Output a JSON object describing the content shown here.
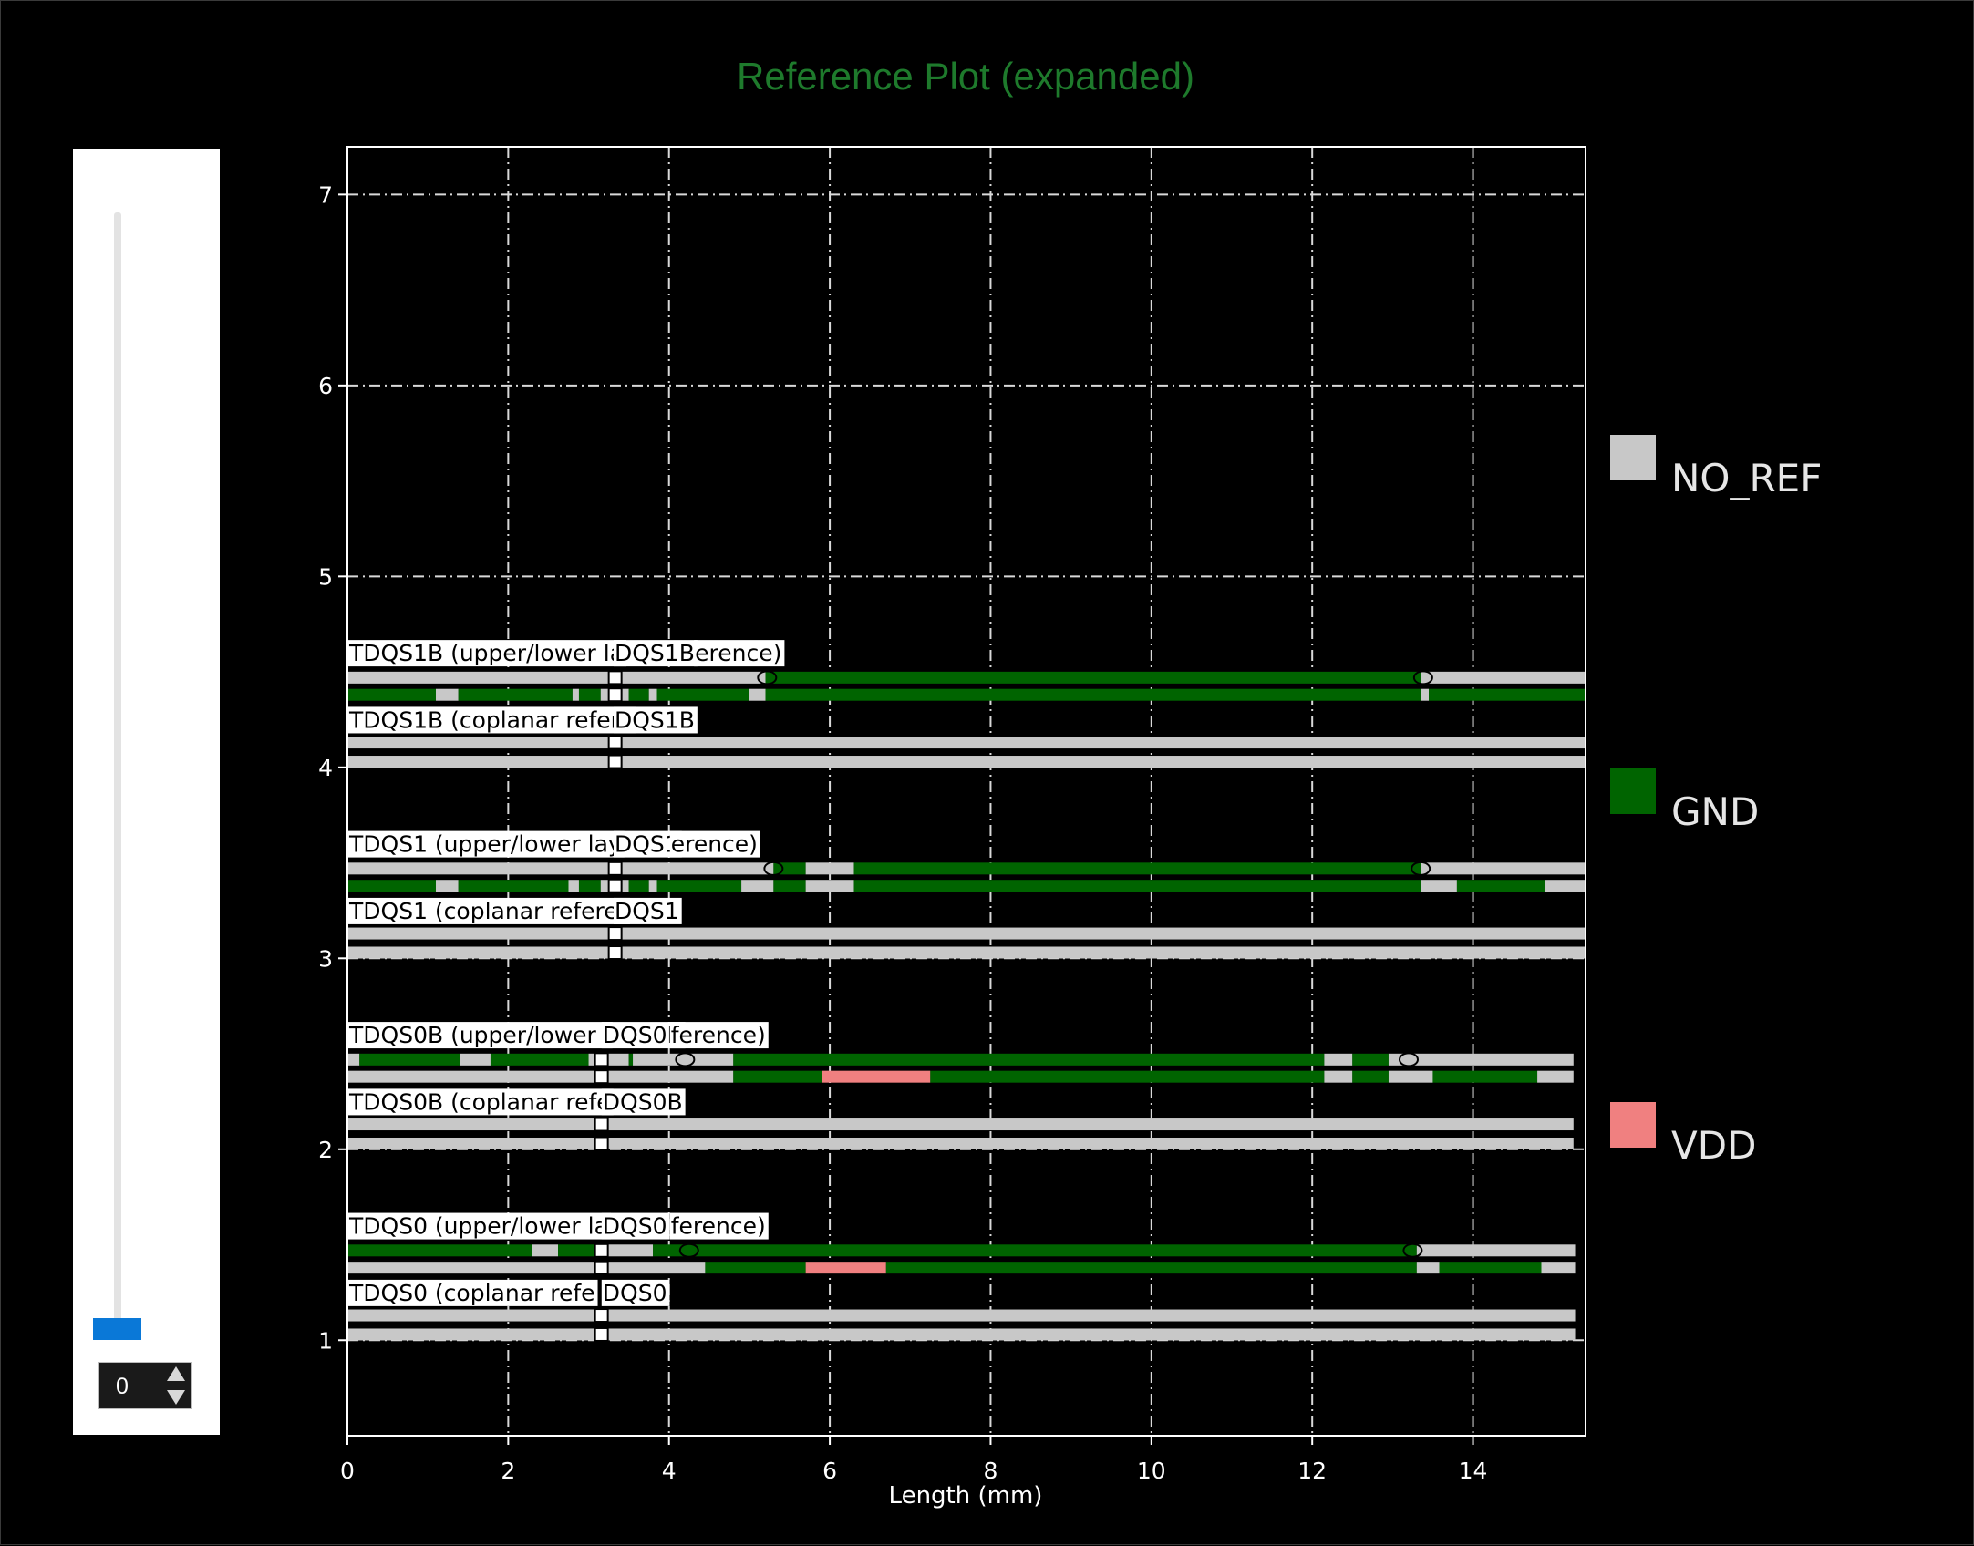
{
  "slider": {
    "value": "0"
  },
  "chart_data": {
    "type": "bar",
    "title": "Reference Plot (expanded)",
    "xlabel": "Length (mm)",
    "ylabel": "",
    "xlim": [
      0,
      15.4
    ],
    "ylim": [
      0.5,
      7.25
    ],
    "xticks": [
      0,
      2,
      4,
      6,
      8,
      10,
      12,
      14
    ],
    "yticks": [
      1,
      2,
      3,
      4,
      5,
      6,
      7
    ],
    "grid": true,
    "legend": {
      "placement": "right",
      "entries": [
        {
          "name": "NO_REF",
          "color": "#c8c8c8"
        },
        {
          "name": "GND",
          "color": "#006400"
        },
        {
          "name": "VDD",
          "color": "#f08080"
        }
      ]
    },
    "colors": {
      "NO_REF": "#c8c8c8",
      "GND": "#006400",
      "VDD": "#f08080"
    },
    "labels": [
      {
        "text": "TDQS1B (upper/lower la",
        "x": 0,
        "y": 4.6
      },
      {
        "text": "DQS1B",
        "x": 3.3,
        "y": 4.6
      },
      {
        "text": "erence)",
        "x": 4.3,
        "y": 4.6
      },
      {
        "text": "TDQS1B (coplanar refere",
        "x": 0,
        "y": 4.25
      },
      {
        "text": "DQS1B",
        "x": 3.3,
        "y": 4.25
      },
      {
        "text": "TDQS1 (upper/lower lay",
        "x": 0,
        "y": 3.6
      },
      {
        "text": "DQS1",
        "x": 3.3,
        "y": 3.6
      },
      {
        "text": "erence)",
        "x": 4.0,
        "y": 3.6
      },
      {
        "text": "TDQS1 (coplanar referer",
        "x": 0,
        "y": 3.25
      },
      {
        "text": "DQS1",
        "x": 3.3,
        "y": 3.25
      },
      {
        "text": "TDQS0B (upper/lower l",
        "x": 0,
        "y": 2.6
      },
      {
        "text": "DQS0B",
        "x": 3.15,
        "y": 2.6
      },
      {
        "text": "ference)",
        "x": 4.0,
        "y": 2.6
      },
      {
        "text": "TDQS0B (coplanar refe",
        "x": 0,
        "y": 2.25
      },
      {
        "text": "DQS0B",
        "x": 3.15,
        "y": 2.25
      },
      {
        "text": "TDQS0 (upper/lower la",
        "x": 0,
        "y": 1.6
      },
      {
        "text": "DQS0",
        "x": 3.15,
        "y": 1.6
      },
      {
        "text": "ference)",
        "x": 4.0,
        "y": 1.6
      },
      {
        "text": "TDQS0 (coplanar refe",
        "x": 0,
        "y": 1.25
      },
      {
        "text": "DQS0",
        "x": 3.15,
        "y": 1.25
      }
    ],
    "rows": [
      {
        "y": 4.47,
        "segments": [
          {
            "x0": 0,
            "x1": 5.2,
            "ref": "NO_REF"
          },
          {
            "x0": 5.2,
            "x1": 13.35,
            "ref": "GND"
          },
          {
            "x0": 13.35,
            "x1": 15.4,
            "ref": "NO_REF"
          }
        ]
      },
      {
        "y": 4.38,
        "segments": [
          {
            "x0": 0,
            "x1": 1.1,
            "ref": "GND"
          },
          {
            "x0": 1.1,
            "x1": 1.38,
            "ref": "NO_REF"
          },
          {
            "x0": 1.38,
            "x1": 2.8,
            "ref": "GND"
          },
          {
            "x0": 2.8,
            "x1": 2.88,
            "ref": "NO_REF"
          },
          {
            "x0": 2.88,
            "x1": 3.15,
            "ref": "GND"
          },
          {
            "x0": 3.15,
            "x1": 3.5,
            "ref": "NO_REF"
          },
          {
            "x0": 3.5,
            "x1": 3.75,
            "ref": "GND"
          },
          {
            "x0": 3.75,
            "x1": 3.85,
            "ref": "NO_REF"
          },
          {
            "x0": 3.85,
            "x1": 5.0,
            "ref": "GND"
          },
          {
            "x0": 5.0,
            "x1": 5.2,
            "ref": "NO_REF"
          },
          {
            "x0": 5.2,
            "x1": 13.35,
            "ref": "GND"
          },
          {
            "x0": 13.35,
            "x1": 13.45,
            "ref": "NO_REF"
          },
          {
            "x0": 13.45,
            "x1": 15.4,
            "ref": "GND"
          }
        ]
      },
      {
        "y": 4.13,
        "segments": [
          {
            "x0": 0,
            "x1": 15.4,
            "ref": "NO_REF"
          }
        ]
      },
      {
        "y": 4.03,
        "segments": [
          {
            "x0": 0,
            "x1": 15.4,
            "ref": "NO_REF"
          }
        ]
      },
      {
        "y": 3.47,
        "segments": [
          {
            "x0": 0,
            "x1": 5.3,
            "ref": "NO_REF"
          },
          {
            "x0": 5.3,
            "x1": 5.7,
            "ref": "GND"
          },
          {
            "x0": 5.7,
            "x1": 6.3,
            "ref": "NO_REF"
          },
          {
            "x0": 6.3,
            "x1": 13.35,
            "ref": "GND"
          },
          {
            "x0": 13.35,
            "x1": 15.4,
            "ref": "NO_REF"
          }
        ]
      },
      {
        "y": 3.38,
        "segments": [
          {
            "x0": 0,
            "x1": 1.1,
            "ref": "GND"
          },
          {
            "x0": 1.1,
            "x1": 1.38,
            "ref": "NO_REF"
          },
          {
            "x0": 1.38,
            "x1": 2.75,
            "ref": "GND"
          },
          {
            "x0": 2.75,
            "x1": 2.88,
            "ref": "NO_REF"
          },
          {
            "x0": 2.88,
            "x1": 3.15,
            "ref": "GND"
          },
          {
            "x0": 3.15,
            "x1": 3.5,
            "ref": "NO_REF"
          },
          {
            "x0": 3.5,
            "x1": 3.75,
            "ref": "GND"
          },
          {
            "x0": 3.75,
            "x1": 3.85,
            "ref": "NO_REF"
          },
          {
            "x0": 3.85,
            "x1": 4.9,
            "ref": "GND"
          },
          {
            "x0": 4.9,
            "x1": 5.3,
            "ref": "NO_REF"
          },
          {
            "x0": 5.3,
            "x1": 5.7,
            "ref": "GND"
          },
          {
            "x0": 5.7,
            "x1": 6.3,
            "ref": "NO_REF"
          },
          {
            "x0": 6.3,
            "x1": 13.35,
            "ref": "GND"
          },
          {
            "x0": 13.35,
            "x1": 13.8,
            "ref": "NO_REF"
          },
          {
            "x0": 13.8,
            "x1": 14.9,
            "ref": "GND"
          },
          {
            "x0": 14.9,
            "x1": 15.4,
            "ref": "NO_REF"
          }
        ]
      },
      {
        "y": 3.13,
        "segments": [
          {
            "x0": 0,
            "x1": 15.4,
            "ref": "NO_REF"
          }
        ]
      },
      {
        "y": 3.03,
        "segments": [
          {
            "x0": 0,
            "x1": 15.4,
            "ref": "NO_REF"
          }
        ]
      },
      {
        "y": 2.47,
        "segments": [
          {
            "x0": 0,
            "x1": 0.15,
            "ref": "NO_REF"
          },
          {
            "x0": 0.15,
            "x1": 1.4,
            "ref": "GND"
          },
          {
            "x0": 1.4,
            "x1": 1.78,
            "ref": "NO_REF"
          },
          {
            "x0": 1.78,
            "x1": 3.0,
            "ref": "GND"
          },
          {
            "x0": 3.0,
            "x1": 3.5,
            "ref": "NO_REF"
          },
          {
            "x0": 3.5,
            "x1": 3.55,
            "ref": "GND"
          },
          {
            "x0": 3.55,
            "x1": 4.8,
            "ref": "NO_REF"
          },
          {
            "x0": 4.8,
            "x1": 12.15,
            "ref": "GND"
          },
          {
            "x0": 12.15,
            "x1": 12.5,
            "ref": "NO_REF"
          },
          {
            "x0": 12.5,
            "x1": 12.95,
            "ref": "GND"
          },
          {
            "x0": 12.95,
            "x1": 15.25,
            "ref": "NO_REF"
          }
        ]
      },
      {
        "y": 2.38,
        "segments": [
          {
            "x0": 0,
            "x1": 4.8,
            "ref": "NO_REF"
          },
          {
            "x0": 4.8,
            "x1": 5.9,
            "ref": "GND"
          },
          {
            "x0": 5.9,
            "x1": 7.25,
            "ref": "VDD"
          },
          {
            "x0": 7.25,
            "x1": 12.15,
            "ref": "GND"
          },
          {
            "x0": 12.15,
            "x1": 12.5,
            "ref": "NO_REF"
          },
          {
            "x0": 12.5,
            "x1": 12.95,
            "ref": "GND"
          },
          {
            "x0": 12.95,
            "x1": 13.5,
            "ref": "NO_REF"
          },
          {
            "x0": 13.5,
            "x1": 14.8,
            "ref": "GND"
          },
          {
            "x0": 14.8,
            "x1": 15.25,
            "ref": "NO_REF"
          }
        ]
      },
      {
        "y": 2.13,
        "segments": [
          {
            "x0": 0,
            "x1": 15.25,
            "ref": "NO_REF"
          }
        ]
      },
      {
        "y": 2.03,
        "segments": [
          {
            "x0": 0,
            "x1": 15.25,
            "ref": "NO_REF"
          }
        ]
      },
      {
        "y": 1.47,
        "segments": [
          {
            "x0": 0,
            "x1": 2.3,
            "ref": "GND"
          },
          {
            "x0": 2.3,
            "x1": 2.62,
            "ref": "NO_REF"
          },
          {
            "x0": 2.62,
            "x1": 3.15,
            "ref": "GND"
          },
          {
            "x0": 3.15,
            "x1": 3.8,
            "ref": "NO_REF"
          },
          {
            "x0": 3.8,
            "x1": 13.3,
            "ref": "GND"
          },
          {
            "x0": 13.3,
            "x1": 15.27,
            "ref": "NO_REF"
          }
        ]
      },
      {
        "y": 1.38,
        "segments": [
          {
            "x0": 0,
            "x1": 4.45,
            "ref": "NO_REF"
          },
          {
            "x0": 4.45,
            "x1": 5.7,
            "ref": "GND"
          },
          {
            "x0": 5.7,
            "x1": 6.7,
            "ref": "VDD"
          },
          {
            "x0": 6.7,
            "x1": 13.3,
            "ref": "GND"
          },
          {
            "x0": 13.3,
            "x1": 13.58,
            "ref": "NO_REF"
          },
          {
            "x0": 13.58,
            "x1": 14.85,
            "ref": "GND"
          },
          {
            "x0": 14.85,
            "x1": 15.27,
            "ref": "NO_REF"
          }
        ]
      },
      {
        "y": 1.13,
        "segments": [
          {
            "x0": 0,
            "x1": 15.27,
            "ref": "NO_REF"
          }
        ]
      },
      {
        "y": 1.03,
        "segments": [
          {
            "x0": 0,
            "x1": 15.27,
            "ref": "NO_REF"
          }
        ]
      }
    ],
    "square_markers": [
      {
        "x": 3.33,
        "y": 4.47
      },
      {
        "x": 3.33,
        "y": 4.38
      },
      {
        "x": 3.33,
        "y": 4.13
      },
      {
        "x": 3.33,
        "y": 4.03
      },
      {
        "x": 3.33,
        "y": 3.47
      },
      {
        "x": 3.33,
        "y": 3.38
      },
      {
        "x": 3.33,
        "y": 3.13
      },
      {
        "x": 3.33,
        "y": 3.03
      },
      {
        "x": 3.16,
        "y": 2.47
      },
      {
        "x": 3.16,
        "y": 2.38
      },
      {
        "x": 3.16,
        "y": 2.13
      },
      {
        "x": 3.16,
        "y": 2.03
      },
      {
        "x": 3.16,
        "y": 1.47
      },
      {
        "x": 3.16,
        "y": 1.38
      },
      {
        "x": 3.16,
        "y": 1.13
      },
      {
        "x": 3.16,
        "y": 1.03
      }
    ],
    "circle_markers": [
      {
        "x": 5.22,
        "y": 4.47
      },
      {
        "x": 13.38,
        "y": 4.47
      },
      {
        "x": 5.3,
        "y": 3.47
      },
      {
        "x": 13.35,
        "y": 3.47
      },
      {
        "x": 4.2,
        "y": 2.47
      },
      {
        "x": 13.2,
        "y": 2.47
      },
      {
        "x": 4.25,
        "y": 1.47
      },
      {
        "x": 13.25,
        "y": 1.47
      }
    ]
  }
}
